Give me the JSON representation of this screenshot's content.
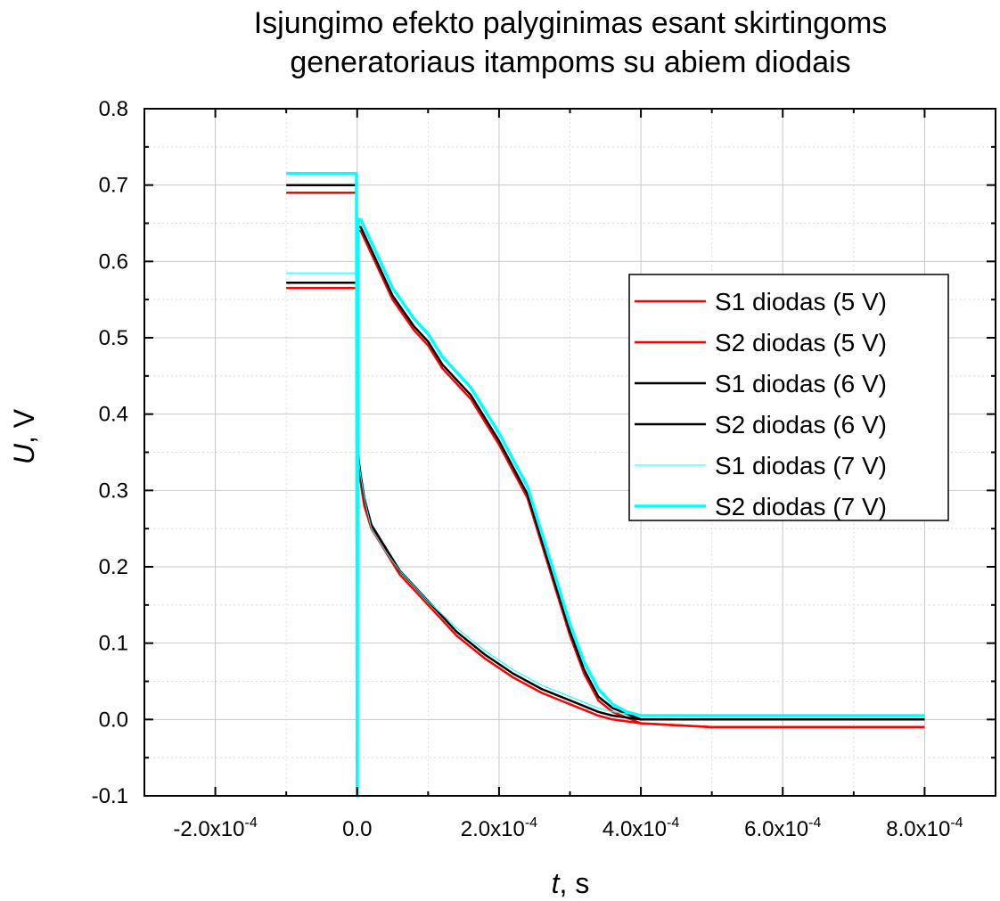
{
  "chart_data": {
    "type": "line",
    "title_line1": "Isjungimo efekto palyginimas esant skirtingoms",
    "title_line2": "generatoriaus itampoms su abiem diodais",
    "xlabel_var": "t",
    "xlabel_unit": ", s",
    "ylabel_var": "U",
    "ylabel_unit": ", V",
    "xlim": [
      -0.0003,
      0.0009
    ],
    "ylim": [
      -0.1,
      0.8
    ],
    "x_ticks": [
      {
        "value": -0.0002,
        "mant": "-2.0x10",
        "exp": "-4"
      },
      {
        "value": 0,
        "mant": "0.0",
        "exp": ""
      },
      {
        "value": 0.0002,
        "mant": "2.0x10",
        "exp": "-4"
      },
      {
        "value": 0.0004,
        "mant": "4.0x10",
        "exp": "-4"
      },
      {
        "value": 0.0006,
        "mant": "6.0x10",
        "exp": "-4"
      },
      {
        "value": 0.0008,
        "mant": "8.0x10",
        "exp": "-4"
      }
    ],
    "y_ticks": [
      "-0.1",
      "0.0",
      "0.1",
      "0.2",
      "0.3",
      "0.4",
      "0.5",
      "0.6",
      "0.7",
      "0.8"
    ],
    "grid": true,
    "legend_position": "right",
    "series": [
      {
        "name": "S1 diodas (5 V)",
        "color": "#ff0000",
        "width": 2.5,
        "x": [
          -0.0001,
          -1e-06,
          1e-07,
          5e-07,
          2e-06,
          5e-06,
          1e-05,
          2e-05,
          4e-05,
          6e-05,
          8e-05,
          0.0001,
          0.00014,
          0.00018,
          0.00022,
          0.00026,
          0.0003,
          0.00034,
          0.00036,
          0.0004,
          0.0005,
          0.0006,
          0.0007,
          0.0008
        ],
        "y": [
          0.565,
          0.565,
          0.44,
          0.36,
          0.33,
          0.31,
          0.28,
          0.25,
          0.22,
          0.19,
          0.17,
          0.15,
          0.11,
          0.08,
          0.055,
          0.035,
          0.02,
          0.005,
          0.0,
          -0.005,
          -0.01,
          -0.01,
          -0.01,
          -0.01
        ]
      },
      {
        "name": "S2 diodas (5 V)",
        "color": "#ff0000",
        "width": 2.5,
        "x": [
          -0.0001,
          -1e-06,
          1e-07,
          1e-06,
          5e-06,
          2e-05,
          5e-05,
          8e-05,
          0.0001,
          0.00012,
          0.00016,
          0.0002,
          0.00024,
          0.00026,
          0.00028,
          0.0003,
          0.00032,
          0.00034,
          0.00036,
          0.0004,
          0.0005,
          0.0006,
          0.0007,
          0.0008
        ],
        "y": [
          0.69,
          0.69,
          0.55,
          0.64,
          0.64,
          0.61,
          0.55,
          0.51,
          0.49,
          0.46,
          0.42,
          0.36,
          0.29,
          0.23,
          0.17,
          0.11,
          0.06,
          0.025,
          0.01,
          -0.005,
          -0.01,
          -0.01,
          -0.01,
          -0.01
        ]
      },
      {
        "name": "S1 diodas (6 V)",
        "color": "#000000",
        "width": 2.5,
        "x": [
          -0.0001,
          -1e-06,
          1e-07,
          5e-07,
          2e-06,
          5e-06,
          1e-05,
          2e-05,
          4e-05,
          6e-05,
          8e-05,
          0.0001,
          0.00014,
          0.00018,
          0.00022,
          0.00026,
          0.0003,
          0.00034,
          0.00036,
          0.0004,
          0.0005,
          0.0006,
          0.0007,
          0.0008
        ],
        "y": [
          0.572,
          0.572,
          0.44,
          0.36,
          0.34,
          0.32,
          0.29,
          0.255,
          0.225,
          0.195,
          0.175,
          0.155,
          0.115,
          0.085,
          0.06,
          0.04,
          0.025,
          0.01,
          0.005,
          0.0,
          0.0,
          0.0,
          0.0,
          0.0
        ]
      },
      {
        "name": "S2 diodas (6 V)",
        "color": "#000000",
        "width": 2.5,
        "x": [
          -0.0001,
          -1e-06,
          1e-07,
          1e-06,
          5e-06,
          2e-05,
          5e-05,
          8e-05,
          0.0001,
          0.00012,
          0.00016,
          0.0002,
          0.00024,
          0.00026,
          0.00028,
          0.0003,
          0.00032,
          0.00034,
          0.00036,
          0.0004,
          0.0005,
          0.0006,
          0.0007,
          0.0008
        ],
        "y": [
          0.7,
          0.7,
          0.55,
          0.645,
          0.645,
          0.615,
          0.555,
          0.515,
          0.495,
          0.465,
          0.425,
          0.365,
          0.295,
          0.235,
          0.175,
          0.115,
          0.065,
          0.03,
          0.015,
          0.0,
          0.0,
          0.0,
          0.0,
          0.0
        ]
      },
      {
        "name": "S1 diodas (7 V)",
        "color": "#00ffff",
        "width": 1,
        "x": [
          -0.0001,
          -1e-06,
          1e-07,
          5e-07,
          2e-06,
          5e-06,
          1e-05,
          2e-05,
          4e-05,
          6e-05,
          8e-05,
          0.0001,
          0.00014,
          0.00018,
          0.00022,
          0.00026,
          0.0003,
          0.00034,
          0.00036,
          0.0004,
          0.0005,
          0.0006,
          0.0007,
          0.0008
        ],
        "y": [
          0.585,
          0.585,
          0.45,
          0.37,
          0.34,
          0.32,
          0.29,
          0.25,
          0.22,
          0.195,
          0.175,
          0.155,
          0.12,
          0.09,
          0.065,
          0.045,
          0.03,
          0.015,
          0.01,
          0.005,
          0.005,
          0.005,
          0.005,
          0.005
        ]
      },
      {
        "name": "S2 diodas (7 V)",
        "color": "#00ffff",
        "width": 3.5,
        "x": [
          -0.0001,
          -1e-06,
          1e-07,
          1e-06,
          5e-06,
          2e-05,
          5e-05,
          8e-05,
          0.0001,
          0.00012,
          0.00016,
          0.0002,
          0.00024,
          0.00026,
          0.00028,
          0.0003,
          0.00032,
          0.00034,
          0.00036,
          0.00038,
          0.0004,
          0.0005,
          0.0006,
          0.0007,
          0.0008
        ],
        "y": [
          0.715,
          0.715,
          -0.1,
          0.655,
          0.655,
          0.625,
          0.565,
          0.525,
          0.505,
          0.475,
          0.435,
          0.375,
          0.305,
          0.245,
          0.185,
          0.125,
          0.075,
          0.04,
          0.02,
          0.01,
          0.005,
          0.005,
          0.005,
          0.005,
          0.005
        ]
      }
    ]
  }
}
